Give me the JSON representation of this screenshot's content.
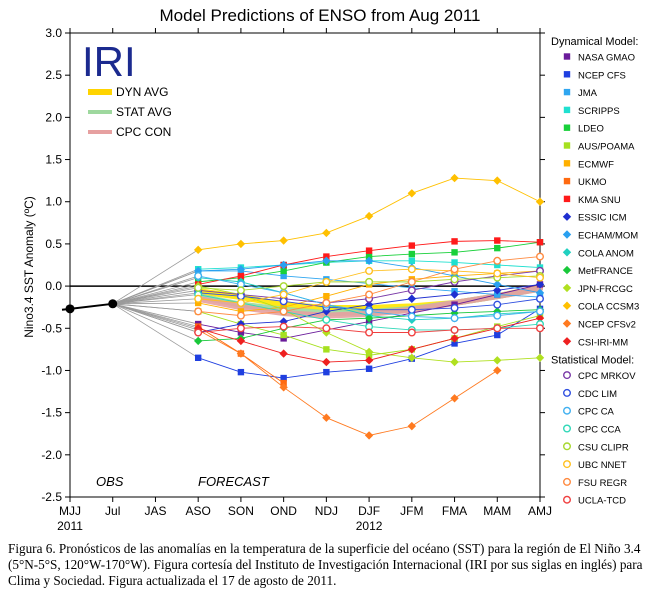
{
  "chart_data": {
    "type": "line",
    "title": "Model Predictions of ENSO from Aug 2011",
    "ylabel": "Nino3.4 SST Anomaly (ºC)",
    "xlabel": "",
    "ylim": [
      -2.5,
      3.0
    ],
    "yticks": [
      -2.5,
      -2.0,
      -1.5,
      -1.0,
      -0.5,
      0.0,
      0.5,
      1.0,
      1.5,
      2.0,
      2.5,
      3.0
    ],
    "categories": [
      "MJJ",
      "Jul",
      "JAS",
      "ASO",
      "SON",
      "OND",
      "NDJ",
      "DJF",
      "JFM",
      "FMA",
      "MAM",
      "AMJ"
    ],
    "year_labels": [
      {
        "label": "2011",
        "at": "MJJ"
      },
      {
        "label": "2012",
        "at": "DJF"
      }
    ],
    "text_labels": {
      "obs": "OBS",
      "forecast": "FORECAST",
      "logo": "IRI"
    },
    "inner_legend": [
      {
        "name": "DYN AVG",
        "color": "#ffd400"
      },
      {
        "name": "STAT AVG",
        "color": "#9ed89e"
      },
      {
        "name": "CPC CON",
        "color": "#e6a0a0"
      }
    ],
    "observed": {
      "x": [
        "MJJ",
        "Jul"
      ],
      "values": [
        -0.27,
        -0.21
      ]
    },
    "averages": [
      {
        "name": "DYN AVG",
        "color": "#ffe600",
        "values": [
          null,
          null,
          null,
          -0.06,
          -0.13,
          -0.22,
          -0.26,
          -0.26,
          -0.24,
          -0.2,
          -0.12,
          -0.02
        ]
      },
      {
        "name": "STAT AVG",
        "color": "#9ed89e",
        "values": [
          null,
          null,
          null,
          -0.12,
          -0.22,
          -0.28,
          -0.32,
          -0.31,
          -0.27,
          -0.2,
          -0.12,
          -0.03
        ]
      },
      {
        "name": "CPC CON",
        "color": "#e6a0a0",
        "values": [
          null,
          null,
          null,
          -0.15,
          -0.25,
          -0.32,
          -0.35,
          -0.33,
          -0.28,
          -0.2,
          -0.12,
          -0.03
        ]
      }
    ],
    "legend_groups": [
      {
        "title": "Dynamical Model:",
        "series": [
          {
            "name": "NASA GMAO",
            "color": "#6a1b9a",
            "marker": "square",
            "values": [
              null,
              null,
              null,
              -0.45,
              -0.55,
              -0.62,
              -0.52,
              -0.42,
              -0.32,
              -0.22,
              -0.1,
              0.02
            ]
          },
          {
            "name": "NCEP CFS",
            "color": "#1f3fe0",
            "marker": "square",
            "values": [
              null,
              null,
              null,
              -0.85,
              -1.02,
              -1.09,
              -1.02,
              -0.98,
              -0.86,
              -0.68,
              -0.58,
              -0.27
            ]
          },
          {
            "name": "JMA",
            "color": "#2fa6f0",
            "marker": "square",
            "values": [
              null,
              null,
              null,
              0.18,
              0.18,
              0.12,
              0.08,
              0.03,
              -0.02,
              -0.06,
              -0.1,
              -0.13
            ]
          },
          {
            "name": "SCRIPPS",
            "color": "#20e0d0",
            "marker": "square",
            "values": [
              null,
              null,
              null,
              0.2,
              0.22,
              0.25,
              0.28,
              0.3,
              0.3,
              0.28,
              0.25,
              0.22
            ]
          },
          {
            "name": "LDEO",
            "color": "#19d03a",
            "marker": "square",
            "values": [
              null,
              null,
              null,
              0.05,
              0.1,
              0.18,
              0.28,
              0.35,
              0.38,
              0.4,
              0.45,
              0.52
            ]
          },
          {
            "name": "AUS/POAMA",
            "color": "#a6e020",
            "marker": "square",
            "values": [
              null,
              null,
              null,
              -0.3,
              -0.45,
              -0.58,
              -0.75,
              -0.82,
              -0.75,
              -0.62,
              -0.48,
              -0.35
            ]
          },
          {
            "name": "ECMWF",
            "color": "#ffb000",
            "marker": "square",
            "values": [
              null,
              null,
              null,
              -0.2,
              -0.3,
              -0.25,
              -0.12,
              0.02,
              0.08,
              0.12,
              0.15,
              0.18
            ]
          },
          {
            "name": "UKMO",
            "color": "#ff6a10",
            "marker": "square",
            "values": [
              null,
              null,
              null,
              -0.48,
              -0.8,
              -1.15,
              null,
              null,
              null,
              null,
              null,
              null
            ]
          },
          {
            "name": "KMA SNU",
            "color": "#ff1a1a",
            "marker": "square",
            "values": [
              null,
              null,
              null,
              0.02,
              0.12,
              0.25,
              0.35,
              0.42,
              0.48,
              0.53,
              0.54,
              0.52
            ]
          },
          {
            "name": "ESSIC ICM",
            "color": "#1f2fd0",
            "marker": "diamond",
            "values": [
              null,
              null,
              null,
              -0.55,
              -0.45,
              -0.42,
              -0.3,
              -0.22,
              -0.15,
              -0.1,
              -0.05,
              0.02
            ]
          },
          {
            "name": "ECHAM/MOM",
            "color": "#2aa0f0",
            "marker": "diamond",
            "values": [
              null,
              null,
              null,
              0.18,
              0.2,
              0.25,
              0.3,
              0.3,
              0.22,
              0.12,
              0.02,
              -0.08
            ]
          },
          {
            "name": "COLA ANOM",
            "color": "#20d0c0",
            "marker": "diamond",
            "values": [
              null,
              null,
              null,
              0.1,
              0.05,
              -0.08,
              -0.22,
              -0.35,
              -0.4,
              -0.38,
              -0.33,
              -0.3
            ]
          },
          {
            "name": "MetFRANCE",
            "color": "#19c83a",
            "marker": "diamond",
            "values": [
              null,
              null,
              null,
              -0.65,
              -0.62,
              -0.5,
              -0.4,
              -0.38,
              -0.35,
              -0.32,
              -0.3,
              -0.28
            ]
          },
          {
            "name": "JPN-FRCGC",
            "color": "#b0e020",
            "marker": "diamond",
            "values": [
              null,
              null,
              null,
              0.0,
              -0.1,
              -0.28,
              -0.55,
              -0.78,
              -0.85,
              -0.9,
              -0.88,
              -0.85
            ]
          },
          {
            "name": "COLA CCSM3",
            "color": "#ffc000",
            "marker": "diamond",
            "values": [
              null,
              null,
              null,
              0.43,
              0.5,
              0.54,
              0.63,
              0.83,
              1.1,
              1.28,
              1.25,
              1.0
            ]
          },
          {
            "name": "NCEP CFSv2",
            "color": "#ff7a20",
            "marker": "diamond",
            "values": [
              null,
              null,
              null,
              -0.52,
              -0.8,
              -1.2,
              -1.56,
              -1.77,
              -1.66,
              -1.33,
              -1.0,
              null
            ]
          },
          {
            "name": "CSI-IRI-MM",
            "color": "#ee2020",
            "marker": "diamond",
            "values": [
              null,
              null,
              null,
              -0.5,
              -0.65,
              -0.8,
              -0.9,
              -0.88,
              -0.75,
              -0.62,
              -0.5,
              -0.38
            ]
          }
        ]
      },
      {
        "title": "Statistical Model:",
        "series": [
          {
            "name": "CPC MRKOV",
            "color": "#7a3aa8",
            "marker": "circle",
            "values": [
              null,
              null,
              null,
              -0.05,
              -0.1,
              -0.15,
              -0.2,
              -0.15,
              -0.05,
              0.05,
              0.12,
              0.18
            ]
          },
          {
            "name": "CDC LIM",
            "color": "#3050e0",
            "marker": "circle",
            "values": [
              null,
              null,
              null,
              -0.08,
              -0.12,
              -0.18,
              -0.25,
              -0.28,
              -0.28,
              -0.26,
              -0.22,
              -0.15
            ]
          },
          {
            "name": "CPC CA",
            "color": "#40b0f0",
            "marker": "circle",
            "values": [
              null,
              null,
              null,
              0.12,
              0.02,
              -0.08,
              -0.22,
              -0.3,
              -0.36,
              -0.38,
              -0.35,
              -0.3
            ]
          },
          {
            "name": "CPC CCA",
            "color": "#30d8b8",
            "marker": "circle",
            "values": [
              null,
              null,
              null,
              -0.1,
              -0.2,
              -0.3,
              -0.4,
              -0.48,
              -0.52,
              -0.52,
              -0.5,
              -0.45
            ]
          },
          {
            "name": "CSU CLIPR",
            "color": "#a8d830",
            "marker": "circle",
            "values": [
              null,
              null,
              null,
              -0.02,
              -0.05,
              0.0,
              0.05,
              0.05,
              0.05,
              0.08,
              0.1,
              0.12
            ]
          },
          {
            "name": "UBC NNET",
            "color": "#ffc020",
            "marker": "circle",
            "values": [
              null,
              null,
              null,
              -0.15,
              -0.2,
              -0.1,
              0.05,
              0.18,
              0.2,
              0.18,
              0.15,
              0.1
            ]
          },
          {
            "name": "FSU REGR",
            "color": "#ff8a40",
            "marker": "circle",
            "values": [
              null,
              null,
              null,
              -0.3,
              -0.35,
              -0.3,
              -0.2,
              -0.1,
              0.05,
              0.2,
              0.3,
              0.35
            ]
          },
          {
            "name": "UCLA-TCD",
            "color": "#f04040",
            "marker": "circle",
            "values": [
              null,
              null,
              null,
              -0.55,
              -0.5,
              -0.48,
              -0.5,
              -0.55,
              -0.55,
              -0.52,
              -0.5,
              -0.5
            ]
          }
        ]
      }
    ]
  },
  "caption": "Figura 6. Pronósticos de las anomalías en la temperatura de la superficie del océano (SST) para la región de El Niño 3.4 (5°N-5°S, 120°W-170°W). Figura cortesía del Instituto de Investigación Internacional (IRI por sus siglas en inglés) para Clima y Sociedad. Figura actualizada el 17 de agosto de 2011."
}
